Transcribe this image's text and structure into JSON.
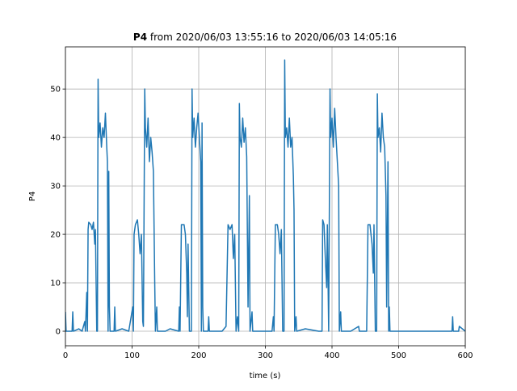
{
  "chart_data": {
    "type": "line",
    "title": [
      "P4",
      "from 2020/06/03 13:55:16 to 2020/06/03 14:05:16"
    ],
    "xlabel": "time (s)",
    "ylabel": "P4",
    "xlim": [
      0,
      600
    ],
    "ylim": [
      -3,
      58.7
    ],
    "xticks": [
      0,
      100,
      200,
      300,
      400,
      500,
      600
    ],
    "yticks": [
      0,
      10,
      20,
      30,
      40,
      50
    ],
    "grid": true,
    "x": [
      0,
      1,
      10,
      11,
      12,
      20,
      25,
      29,
      30,
      32,
      33,
      34,
      35,
      38,
      40,
      42,
      44,
      45,
      47,
      48,
      49,
      50,
      52,
      54,
      56,
      58,
      60,
      62,
      63,
      64,
      65,
      66,
      67,
      73,
      74,
      75,
      85,
      95,
      101,
      102,
      103,
      105,
      108,
      110,
      112,
      114,
      116,
      117,
      119,
      120,
      122,
      124,
      126,
      128,
      130,
      132,
      134,
      135,
      137,
      138,
      150,
      157,
      170,
      171,
      172,
      174,
      178,
      180,
      182,
      183,
      184,
      186,
      189,
      190,
      191,
      193,
      195,
      197,
      199,
      201,
      203,
      204,
      205,
      206,
      207,
      214,
      215,
      216,
      235,
      241,
      244,
      247,
      250,
      252,
      254,
      256,
      258,
      260,
      261,
      262,
      264,
      266,
      268,
      270,
      272,
      274,
      276,
      277,
      280,
      281,
      288,
      300,
      310,
      312,
      313,
      315,
      318,
      320,
      322,
      324,
      326,
      328,
      329,
      330,
      332,
      334,
      336,
      338,
      340,
      342,
      343,
      344,
      346,
      347,
      360,
      380,
      385,
      386,
      388,
      390,
      392,
      393,
      395,
      397,
      398,
      400,
      402,
      404,
      406,
      408,
      410,
      411,
      413,
      414,
      428,
      440,
      441,
      452,
      454,
      457,
      460,
      462,
      463,
      465,
      467,
      468,
      469,
      471,
      473,
      475,
      477,
      479,
      481,
      482,
      484,
      485,
      486,
      487,
      500,
      580,
      581,
      582,
      590,
      591,
      600
    ],
    "series": [
      {
        "name": "P4",
        "color": "#1f77b4",
        "values": [
          4,
          0,
          0,
          4,
          0,
          0.5,
          0,
          2,
          0,
          8,
          0,
          21,
          22.5,
          22,
          21,
          22.5,
          18,
          21,
          0,
          0,
          52,
          40,
          43,
          38,
          42,
          40,
          45,
          38,
          35,
          0,
          33,
          5,
          0,
          0,
          5,
          0,
          0.5,
          0,
          5,
          0,
          20,
          22,
          23,
          20,
          16,
          20,
          2,
          1,
          50,
          42,
          38,
          44,
          35,
          40,
          37,
          33,
          10,
          0,
          5,
          0,
          0,
          0.5,
          0,
          5,
          0,
          22,
          22,
          20,
          12,
          3,
          18,
          0,
          0,
          50,
          40,
          44,
          38,
          42,
          45,
          40,
          35,
          0,
          43,
          5,
          0,
          0,
          3,
          0,
          0,
          1,
          22,
          21,
          22,
          15,
          20,
          0,
          3,
          0,
          47,
          40,
          38,
          44,
          39,
          42,
          36,
          5,
          28,
          0,
          4,
          0,
          0,
          0,
          0,
          3,
          0,
          22,
          22,
          20,
          16,
          21,
          0,
          0,
          56,
          40,
          42,
          38,
          44,
          38,
          40,
          32,
          25,
          0,
          3,
          0,
          0.5,
          0,
          0,
          23,
          22,
          15,
          9,
          22,
          0,
          50,
          40,
          44,
          38,
          46,
          40,
          35,
          30,
          0,
          4,
          0,
          0,
          1,
          0,
          0,
          22,
          22,
          18,
          12,
          22,
          0,
          0,
          49,
          40,
          42,
          37,
          45,
          40,
          38,
          28,
          5,
          35,
          0,
          5,
          0,
          0,
          0,
          3,
          0,
          0,
          1,
          0
        ]
      }
    ]
  }
}
